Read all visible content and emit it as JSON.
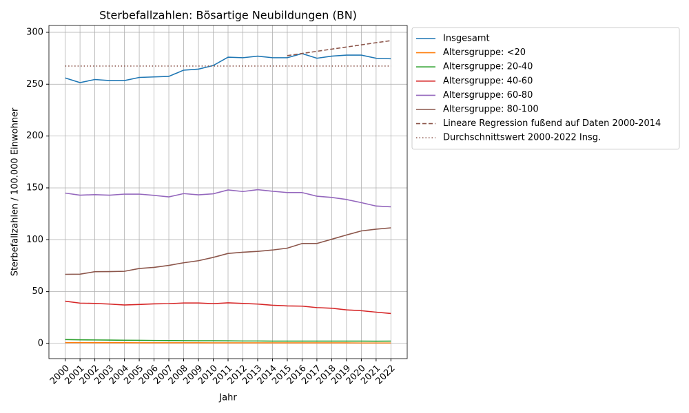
{
  "chart_data": {
    "type": "line",
    "title": "Sterbefallzahlen: Bösartige Neubildungen (BN)",
    "xlabel": "Jahr",
    "ylabel": "Sterbefallzahlen / 100.000 Einwohner",
    "x": [
      2000,
      2001,
      2002,
      2003,
      2004,
      2005,
      2006,
      2007,
      2008,
      2009,
      2010,
      2011,
      2012,
      2013,
      2014,
      2015,
      2016,
      2017,
      2018,
      2019,
      2020,
      2021,
      2022
    ],
    "xlim": [
      1998.9,
      2023.1
    ],
    "xticks": [
      2000,
      2001,
      2002,
      2003,
      2004,
      2005,
      2006,
      2007,
      2008,
      2009,
      2010,
      2011,
      2012,
      2013,
      2014,
      2015,
      2016,
      2017,
      2018,
      2019,
      2020,
      2021,
      2022
    ],
    "ylim": [
      -14.6,
      306.6
    ],
    "yticks": [
      0,
      50,
      100,
      150,
      200,
      250,
      300
    ],
    "grid": true,
    "legend": "outside-upper-right",
    "series": [
      {
        "name": "Insgesamt",
        "color": "#1f77b4",
        "dash": "solid",
        "values": [
          256,
          251.5,
          254.5,
          253.5,
          253.5,
          256.5,
          257,
          257.5,
          263.5,
          264.5,
          268,
          276,
          275.5,
          277,
          275.5,
          275.5,
          279.5,
          275,
          277,
          278,
          278,
          275,
          274.5
        ]
      },
      {
        "name": "Altersgruppe: <20",
        "color": "#ff7f0e",
        "dash": "solid",
        "values": [
          0.9,
          0.9,
          0.8,
          0.8,
          0.8,
          0.7,
          0.7,
          0.7,
          0.7,
          0.7,
          0.6,
          0.6,
          0.6,
          0.6,
          0.6,
          0.6,
          0.6,
          0.6,
          0.6,
          0.6,
          0.5,
          0.5,
          0.5
        ]
      },
      {
        "name": "Altersgruppe: 20-40",
        "color": "#2ca02c",
        "dash": "solid",
        "values": [
          3.8,
          3.5,
          3.4,
          3.3,
          3.1,
          3.0,
          2.9,
          2.8,
          2.7,
          2.6,
          2.6,
          2.5,
          2.4,
          2.4,
          2.3,
          2.3,
          2.3,
          2.3,
          2.3,
          2.3,
          2.3,
          2.2,
          2.3
        ]
      },
      {
        "name": "Altersgruppe: 40-60",
        "color": "#d62728",
        "dash": "solid",
        "values": [
          40.8,
          38.9,
          38.6,
          38.0,
          37.1,
          37.6,
          38.2,
          38.4,
          39.0,
          39.0,
          38.4,
          39.2,
          38.6,
          38.0,
          36.9,
          36.2,
          36.0,
          34.6,
          34.0,
          32.4,
          31.6,
          30.2,
          28.9
        ]
      },
      {
        "name": "Altersgruppe: 60-80",
        "color": "#9467bd",
        "dash": "solid",
        "values": [
          145,
          143,
          143.5,
          143,
          144,
          144,
          142.8,
          141.3,
          144.5,
          143.3,
          144.3,
          148,
          146.5,
          148.3,
          146.8,
          145.5,
          145.5,
          142,
          140.8,
          138.8,
          135.8,
          132.5,
          131.8
        ]
      },
      {
        "name": "Altersgruppe: 80-100",
        "color": "#8c564b",
        "dash": "solid",
        "values": [
          66.7,
          66.8,
          69.2,
          69.3,
          69.6,
          72.3,
          73.4,
          75.3,
          77.8,
          79.8,
          83,
          86.8,
          88,
          88.8,
          90.1,
          91.9,
          96.4,
          96.4,
          100.5,
          104.6,
          108.5,
          110.2,
          111.5
        ]
      },
      {
        "name": "Lineare Regression fußend auf Daten 2000-2014",
        "color": "#8c564b",
        "dash": "dashed",
        "values": [
          null,
          null,
          null,
          null,
          null,
          null,
          null,
          null,
          null,
          null,
          null,
          null,
          null,
          null,
          null,
          277.5,
          279.6,
          281.7,
          283.8,
          285.8,
          287.9,
          290,
          292
        ]
      },
      {
        "name": "Durchschnittswert 2000-2022 Insg.",
        "color": "#8c564b",
        "dash": "dotted",
        "values": [
          267.5,
          267.5,
          267.5,
          267.5,
          267.5,
          267.5,
          267.5,
          267.5,
          267.5,
          267.5,
          267.5,
          267.5,
          267.5,
          267.5,
          267.5,
          267.5,
          267.5,
          267.5,
          267.5,
          267.5,
          267.5,
          267.5,
          267.5
        ]
      }
    ]
  }
}
